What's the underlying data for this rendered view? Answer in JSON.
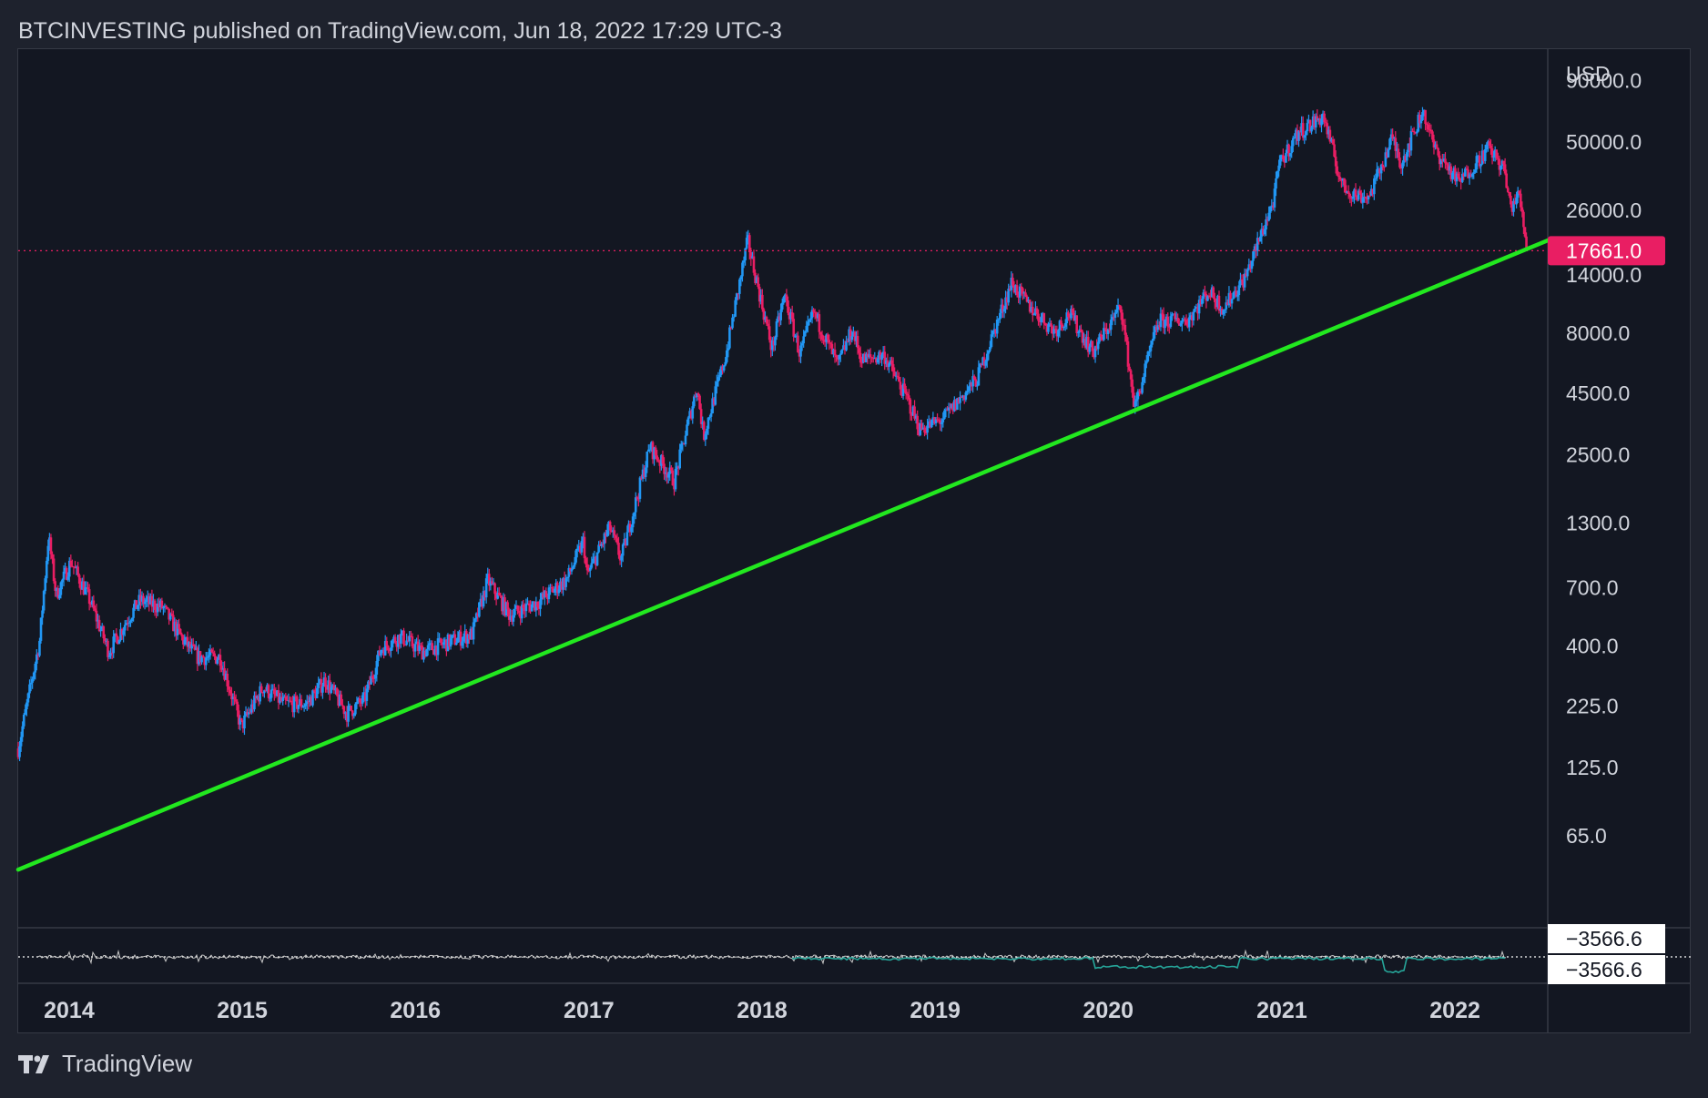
{
  "header": {
    "publisher_line": "BTCINVESTING published on TradingView.com, Jun 18, 2022 17:29 UTC-3"
  },
  "footer": {
    "brand": "TradingView",
    "logo_icon": "tradingview-logo-icon"
  },
  "colors": {
    "background": "#131722",
    "frame": "#1e222d",
    "up_candle": "#2196f3",
    "down_candle": "#e91e63",
    "trendline": "#22e81f",
    "price_line": "#e91e63",
    "oscillator": "#c8c8c8",
    "oscillator_signal": "#26a69a"
  },
  "chart_data": {
    "type": "candlestick",
    "symbol_currency": "USD",
    "scale": "log",
    "x_tick_labels": [
      "2014",
      "2015",
      "2016",
      "2017",
      "2018",
      "2019",
      "2020",
      "2021",
      "2022"
    ],
    "y_tick_labels": [
      "90000.0",
      "50000.0",
      "26000.0",
      "14000.0",
      "8000.0",
      "4500.0",
      "2500.0",
      "1300.0",
      "700.0",
      "400.0",
      "225.0",
      "125.0",
      "65.0"
    ],
    "y_ticks": [
      90000,
      50000,
      26000,
      14000,
      8000,
      4500,
      2500,
      1300,
      700,
      400,
      225,
      125,
      65
    ],
    "last_price_label": "17661.0",
    "last_price": 17661,
    "price_path": [
      [
        "2013-10-01",
        150
      ],
      [
        "2013-11-15",
        420
      ],
      [
        "2013-12-04",
        1150
      ],
      [
        "2013-12-20",
        650
      ],
      [
        "2014-01-20",
        900
      ],
      [
        "2014-03-01",
        620
      ],
      [
        "2014-04-10",
        380
      ],
      [
        "2014-05-20",
        520
      ],
      [
        "2014-06-15",
        620
      ],
      [
        "2014-08-01",
        580
      ],
      [
        "2014-09-15",
        420
      ],
      [
        "2014-10-15",
        360
      ],
      [
        "2014-12-01",
        360
      ],
      [
        "2015-01-14",
        185
      ],
      [
        "2015-03-01",
        270
      ],
      [
        "2015-04-15",
        230
      ],
      [
        "2015-06-01",
        230
      ],
      [
        "2015-07-10",
        290
      ],
      [
        "2015-08-25",
        210
      ],
      [
        "2015-10-01",
        240
      ],
      [
        "2015-11-05",
        390
      ],
      [
        "2015-12-15",
        440
      ],
      [
        "2016-02-01",
        380
      ],
      [
        "2016-04-01",
        420
      ],
      [
        "2016-05-15",
        450
      ],
      [
        "2016-06-17",
        750
      ],
      [
        "2016-08-02",
        540
      ],
      [
        "2016-10-01",
        610
      ],
      [
        "2016-12-01",
        760
      ],
      [
        "2017-01-05",
        1100
      ],
      [
        "2017-01-12",
        780
      ],
      [
        "2017-03-01",
        1250
      ],
      [
        "2017-03-25",
        920
      ],
      [
        "2017-05-25",
        2700
      ],
      [
        "2017-07-15",
        1950
      ],
      [
        "2017-09-01",
        4800
      ],
      [
        "2017-09-15",
        3000
      ],
      [
        "2017-11-01",
        6500
      ],
      [
        "2017-12-17",
        19500
      ],
      [
        "2018-02-06",
        6900
      ],
      [
        "2018-03-05",
        11500
      ],
      [
        "2018-04-06",
        6600
      ],
      [
        "2018-05-05",
        9800
      ],
      [
        "2018-06-25",
        5900
      ],
      [
        "2018-07-25",
        8300
      ],
      [
        "2018-08-15",
        6200
      ],
      [
        "2018-10-01",
        6500
      ],
      [
        "2018-11-20",
        4200
      ],
      [
        "2018-12-15",
        3200
      ],
      [
        "2019-02-01",
        3500
      ],
      [
        "2019-04-15",
        5200
      ],
      [
        "2019-06-26",
        13000
      ],
      [
        "2019-08-01",
        10500
      ],
      [
        "2019-09-25",
        8200
      ],
      [
        "2019-10-26",
        9700
      ],
      [
        "2019-12-15",
        6700
      ],
      [
        "2020-02-12",
        10400
      ],
      [
        "2020-03-12",
        3900
      ],
      [
        "2020-05-01",
        9000
      ],
      [
        "2020-07-01",
        9100
      ],
      [
        "2020-08-15",
        12000
      ],
      [
        "2020-09-15",
        10200
      ],
      [
        "2020-11-01",
        13800
      ],
      [
        "2020-12-31",
        29000
      ],
      [
        "2021-01-10",
        40000
      ],
      [
        "2021-02-20",
        55000
      ],
      [
        "2021-04-14",
        64000
      ],
      [
        "2021-05-23",
        33000
      ],
      [
        "2021-06-22",
        30000
      ],
      [
        "2021-07-20",
        29800
      ],
      [
        "2021-09-06",
        52000
      ],
      [
        "2021-09-25",
        41000
      ],
      [
        "2021-11-10",
        68000
      ],
      [
        "2021-12-04",
        47000
      ],
      [
        "2022-01-24",
        34000
      ],
      [
        "2022-03-29",
        47500
      ],
      [
        "2022-05-01",
        38000
      ],
      [
        "2022-05-12",
        27000
      ],
      [
        "2022-06-01",
        30000
      ],
      [
        "2022-06-18",
        17661
      ]
    ],
    "trendline": {
      "points": [
        [
          "2013-10-01",
          47
        ],
        [
          "2022-07-31",
          19500
        ]
      ],
      "color": "green"
    },
    "oscillator": {
      "value_labels": [
        "−3566.6",
        "−3566.6"
      ]
    }
  }
}
